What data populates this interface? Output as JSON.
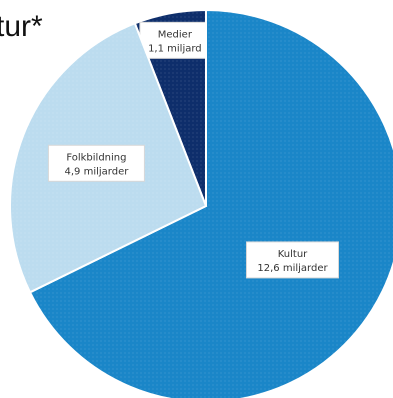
{
  "header": {
    "title_fragment": "tur*"
  },
  "chart_data": {
    "type": "pie",
    "slices": [
      {
        "label": "Medier",
        "value_label": "1,1 miljard",
        "value": 1.1,
        "color": "#0e2e6b"
      },
      {
        "label": "Kultur",
        "value_label": "12,6 miljarder",
        "value": 12.6,
        "color": "#1a86c8"
      },
      {
        "label": "Folkbildning",
        "value_label": "4,9 miljarder",
        "value": 4.9,
        "color": "#bcdcef"
      }
    ],
    "unit": "miljarder"
  }
}
